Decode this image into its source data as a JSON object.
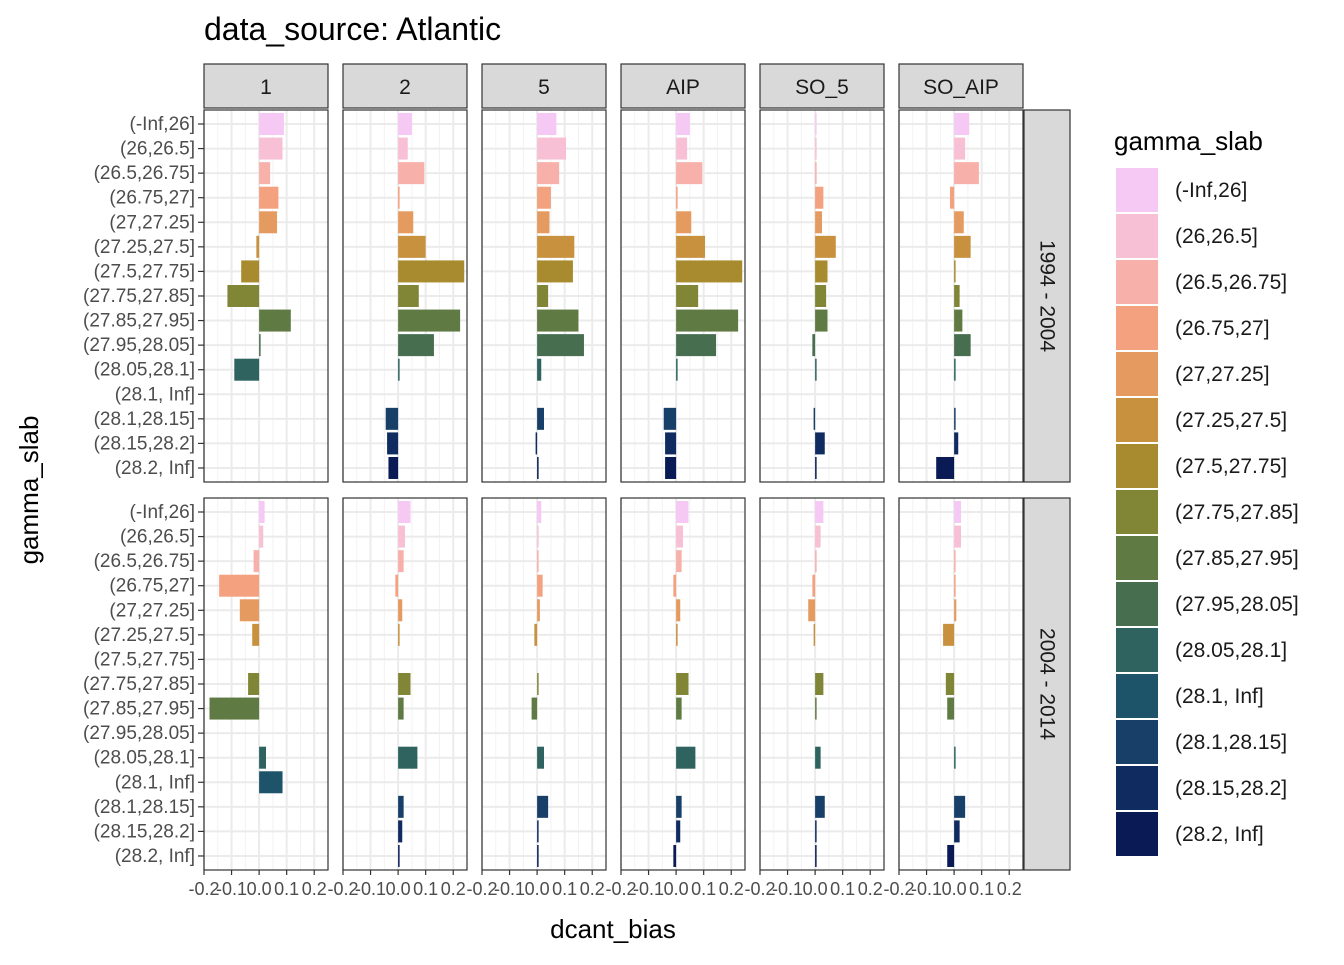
{
  "chart_data": {
    "type": "bar",
    "orientation": "horizontal",
    "title": "data_source: Atlantic",
    "xlabel": "dcant_bias",
    "ylabel": "gamma_slab",
    "xlim": [
      -0.2,
      0.25
    ],
    "x_ticks": [
      -0.2,
      -0.1,
      0.0,
      0.1,
      0.2
    ],
    "x_tick_labels": [
      "-0.2",
      "-0.1",
      "0.0",
      "0.1",
      "0.2"
    ],
    "grid": true,
    "legend_position": "right",
    "legend": {
      "title": "gamma_slab",
      "entries": [
        {
          "label": "(-Inf,26]",
          "color": "#F6C8F4"
        },
        {
          "label": "(26,26.5]",
          "color": "#F8C0D4"
        },
        {
          "label": "(26.5,26.75]",
          "color": "#F8B0AA"
        },
        {
          "label": "(26.75,27]",
          "color": "#F3A17F"
        },
        {
          "label": "(27,27.25]",
          "color": "#E59B60"
        },
        {
          "label": "(27.25,27.5]",
          "color": "#C8913E"
        },
        {
          "label": "(27.5,27.75]",
          "color": "#A88B2E"
        },
        {
          "label": "(27.75,27.85]",
          "color": "#818536"
        },
        {
          "label": "(27.85,27.95]",
          "color": "#607A43"
        },
        {
          "label": "(27.95,28.05]",
          "color": "#476E4F"
        },
        {
          "label": "(28.05,28.1]",
          "color": "#2E6360"
        },
        {
          "label": "(28.1, Inf]",
          "color": "#1E5469"
        },
        {
          "label": "(28.1,28.15]",
          "color": "#173F67"
        },
        {
          "label": "(28.15,28.2]",
          "color": "#102B5F"
        },
        {
          "label": "(28.2, Inf]",
          "color": "#0A1A55"
        }
      ]
    },
    "facet_columns": [
      "1",
      "2",
      "5",
      "AIP",
      "SO_5",
      "SO_AIP"
    ],
    "facet_rows": [
      "1994 - 2004",
      "2004 - 2014"
    ],
    "categories": [
      "(-Inf,26]",
      "(26,26.5]",
      "(26.5,26.75]",
      "(26.75,27]",
      "(27,27.25]",
      "(27.25,27.5]",
      "(27.5,27.75]",
      "(27.75,27.85]",
      "(27.85,27.95]",
      "(27.95,28.05]",
      "(28.05,28.1]",
      "(28.1, Inf]",
      "(28.1,28.15]",
      "(28.15,28.2]",
      "(28.2, Inf]"
    ],
    "panels": [
      {
        "row": 0,
        "col": 0,
        "values": [
          0.09,
          0.085,
          0.04,
          0.07,
          0.065,
          -0.01,
          -0.065,
          -0.115,
          0.115,
          0.005,
          -0.09,
          null,
          null,
          null,
          null
        ]
      },
      {
        "row": 0,
        "col": 1,
        "values": [
          0.05,
          0.035,
          0.095,
          0.0,
          0.055,
          0.1,
          0.24,
          0.075,
          0.225,
          0.13,
          0.003,
          null,
          -0.045,
          -0.04,
          -0.035
        ]
      },
      {
        "row": 0,
        "col": 2,
        "values": [
          0.07,
          0.105,
          0.08,
          0.05,
          0.045,
          0.135,
          0.13,
          0.04,
          0.15,
          0.17,
          0.015,
          null,
          0.025,
          -0.003,
          0.0
        ]
      },
      {
        "row": 0,
        "col": 3,
        "values": [
          0.05,
          0.04,
          0.095,
          0.0,
          0.055,
          0.105,
          0.24,
          0.08,
          0.225,
          0.145,
          0.003,
          null,
          -0.045,
          -0.04,
          -0.04
        ]
      },
      {
        "row": 0,
        "col": 4,
        "values": [
          0.0,
          0.0,
          0.0,
          0.03,
          0.025,
          0.075,
          0.045,
          0.04,
          0.045,
          -0.01,
          0.005,
          null,
          -0.003,
          0.035,
          0.0
        ]
      },
      {
        "row": 0,
        "col": 5,
        "values": [
          0.055,
          0.04,
          0.09,
          -0.015,
          0.035,
          0.06,
          0.003,
          0.02,
          0.03,
          0.06,
          0.005,
          null,
          0.003,
          0.015,
          -0.065
        ]
      },
      {
        "row": 1,
        "col": 0,
        "values": [
          0.02,
          0.015,
          -0.02,
          -0.145,
          -0.07,
          -0.025,
          null,
          -0.04,
          -0.18,
          null,
          0.025,
          0.085,
          null,
          null,
          null
        ]
      },
      {
        "row": 1,
        "col": 1,
        "values": [
          0.045,
          0.025,
          0.02,
          -0.01,
          0.015,
          0.0,
          null,
          0.045,
          0.02,
          null,
          0.07,
          null,
          0.02,
          0.015,
          0.0
        ]
      },
      {
        "row": 1,
        "col": 2,
        "values": [
          0.015,
          0.005,
          0.003,
          0.02,
          0.01,
          -0.01,
          null,
          0.005,
          -0.02,
          null,
          0.025,
          null,
          0.04,
          0.0,
          0.0
        ]
      },
      {
        "row": 1,
        "col": 3,
        "values": [
          0.045,
          0.025,
          0.02,
          -0.01,
          0.015,
          0.0,
          null,
          0.045,
          0.02,
          null,
          0.07,
          null,
          0.02,
          0.015,
          -0.01
        ]
      },
      {
        "row": 1,
        "col": 4,
        "values": [
          0.03,
          0.02,
          0.0,
          -0.01,
          -0.025,
          -0.005,
          null,
          0.03,
          0.003,
          null,
          0.02,
          null,
          0.035,
          0.0,
          0.0
        ]
      },
      {
        "row": 1,
        "col": 5,
        "values": [
          0.025,
          0.025,
          0.003,
          0.003,
          0.008,
          -0.04,
          null,
          -0.03,
          -0.025,
          null,
          0.003,
          null,
          0.04,
          0.02,
          -0.025
        ]
      }
    ]
  }
}
